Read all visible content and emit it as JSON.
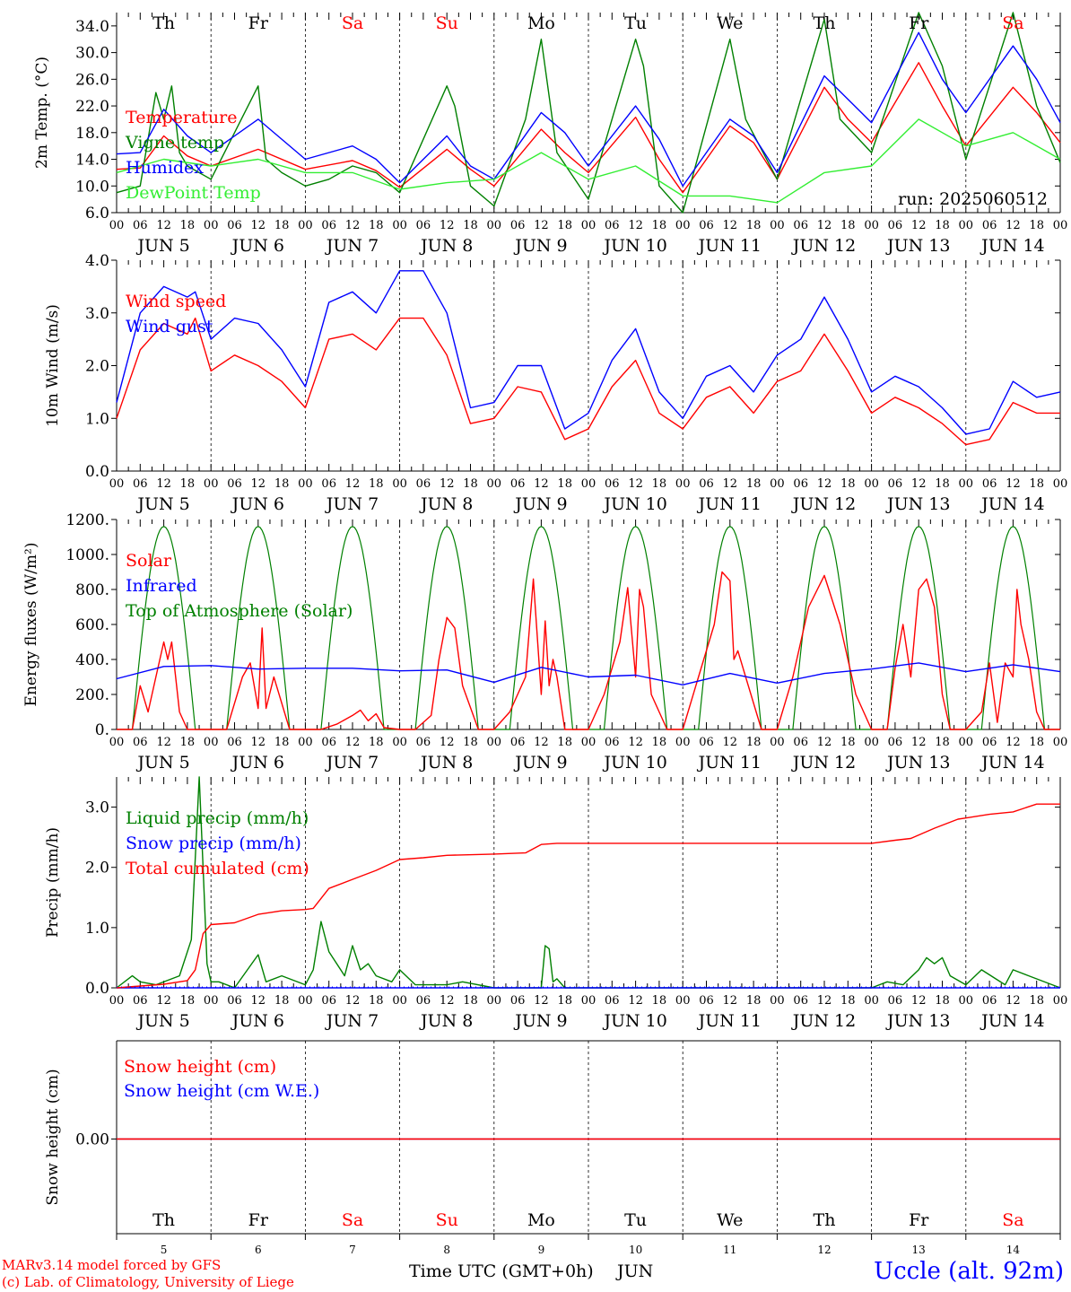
{
  "colors": {
    "red": "#ff0000",
    "green": "#008000",
    "blue": "#0000ff",
    "lightgreen": "#33ee33",
    "black": "#000000"
  },
  "days": {
    "abbr": [
      "Th",
      "Fr",
      "Sa",
      "Su",
      "Mo",
      "Tu",
      "We",
      "Th",
      "Fr",
      "Sa"
    ],
    "weekend": [
      false,
      false,
      true,
      true,
      false,
      false,
      false,
      false,
      false,
      true
    ],
    "dates": [
      "JUN  5",
      "JUN  6",
      "JUN  7",
      "JUN  8",
      "JUN  9",
      "JUN 10",
      "JUN 11",
      "JUN 12",
      "JUN 13",
      "JUN 14"
    ],
    "numbers": [
      "5",
      "6",
      "7",
      "8",
      "9",
      "10",
      "11",
      "12",
      "13",
      "14"
    ],
    "hour_labels": [
      "00",
      "06",
      "12",
      "18"
    ],
    "final_hour": "00"
  },
  "run_label": "run: 2025060512",
  "x_axis_title": "Time UTC (GMT+0h)",
  "x_axis_month": "JUN",
  "footer": {
    "model": "MARv3.14 model forced by GFS",
    "credit": "(c) Lab. of Climatology, University of Liege",
    "station": "Uccle (alt. 92m)"
  },
  "chart_data": [
    {
      "type": "line",
      "ylabel": "2m Temp. (°C)",
      "ylim": [
        6,
        36
      ],
      "yticks": [
        "6.0",
        "10.0",
        "14.0",
        "18.0",
        "22.0",
        "26.0",
        "30.0",
        "34.0"
      ],
      "ytick_values": [
        6,
        10,
        14,
        18,
        22,
        26,
        30,
        34
      ],
      "x_unit": "hours since JUN 5 00 UTC",
      "legend": [
        "Temperature",
        "Vigne temp",
        "Humidex",
        "DewPoint Temp"
      ],
      "series": [
        {
          "name": "Temperature",
          "color": "red",
          "x": [
            0,
            6,
            12,
            18,
            24,
            36,
            48,
            60,
            66,
            72,
            84,
            90,
            96,
            108,
            114,
            120,
            132,
            138,
            144,
            156,
            162,
            168,
            180,
            186,
            192,
            204,
            210,
            216,
            228,
            234,
            240
          ],
          "y": [
            12.5,
            12.7,
            17.5,
            14.5,
            13,
            15.5,
            12.5,
            13.8,
            12.3,
            9.8,
            15.5,
            12.5,
            10,
            18.5,
            15,
            12,
            20.3,
            14,
            9,
            19,
            16.5,
            11,
            24.8,
            20,
            16.5,
            28.5,
            22,
            16,
            24.8,
            21,
            16.5
          ]
        },
        {
          "name": "Vigne temp",
          "color": "green",
          "x": [
            0,
            6,
            10,
            12,
            14,
            16,
            18,
            24,
            30,
            36,
            38,
            42,
            48,
            54,
            60,
            66,
            72,
            84,
            86,
            90,
            96,
            104,
            108,
            112,
            120,
            132,
            134,
            138,
            144,
            156,
            160,
            168,
            180,
            184,
            192,
            204,
            210,
            216,
            228,
            234,
            240
          ],
          "y": [
            9,
            10,
            24,
            20,
            25,
            15,
            13,
            11,
            18,
            25,
            14,
            12,
            10,
            11,
            13,
            12,
            9,
            25,
            22,
            10,
            7,
            20,
            32,
            15,
            8,
            32,
            28,
            10,
            4,
            32,
            20,
            11,
            35,
            20,
            15,
            37,
            28,
            14,
            36,
            22,
            13.5
          ]
        },
        {
          "name": "Humidex",
          "color": "blue",
          "x": [
            0,
            6,
            12,
            18,
            24,
            36,
            48,
            60,
            66,
            72,
            84,
            90,
            96,
            108,
            114,
            120,
            132,
            138,
            144,
            156,
            162,
            168,
            180,
            186,
            192,
            204,
            210,
            216,
            228,
            234,
            240
          ],
          "y": [
            14.8,
            15,
            21.5,
            17.5,
            15,
            20,
            14,
            16,
            14,
            10.5,
            17.5,
            13,
            11,
            21,
            18,
            13,
            22,
            17,
            10,
            20,
            17.5,
            12,
            26.5,
            23,
            19.5,
            33,
            26,
            21,
            31,
            26,
            19.5
          ]
        },
        {
          "name": "DewPoint Temp",
          "color": "lightgreen",
          "x": [
            0,
            12,
            24,
            36,
            48,
            60,
            72,
            84,
            96,
            108,
            120,
            132,
            144,
            156,
            168,
            180,
            192,
            204,
            216,
            228,
            240
          ],
          "y": [
            12,
            14,
            13,
            14,
            12,
            12,
            9.5,
            10.5,
            11,
            15,
            11,
            13,
            8.5,
            8.5,
            7.5,
            12,
            13,
            20,
            16,
            18,
            14
          ]
        }
      ]
    },
    {
      "type": "line",
      "ylabel": "10m Wind (m/s)",
      "ylim": [
        0,
        4
      ],
      "yticks": [
        "0.0",
        "1.0",
        "2.0",
        "3.0",
        "4.0"
      ],
      "ytick_values": [
        0,
        1,
        2,
        3,
        4
      ],
      "x_unit": "hours since JUN 5 00 UTC",
      "legend": [
        "Wind speed",
        "Wind gust"
      ],
      "series": [
        {
          "name": "Wind speed",
          "color": "red",
          "x": [
            0,
            6,
            12,
            18,
            20,
            24,
            30,
            36,
            42,
            48,
            54,
            60,
            66,
            72,
            78,
            84,
            90,
            96,
            102,
            108,
            114,
            120,
            126,
            132,
            138,
            144,
            150,
            156,
            162,
            168,
            174,
            180,
            186,
            192,
            198,
            204,
            210,
            216,
            222,
            228,
            234,
            240
          ],
          "y": [
            1.0,
            2.3,
            2.8,
            2.6,
            2.9,
            1.9,
            2.2,
            2.0,
            1.7,
            1.2,
            2.5,
            2.6,
            2.3,
            2.9,
            2.9,
            2.2,
            0.9,
            1.0,
            1.6,
            1.5,
            0.6,
            0.8,
            1.6,
            2.1,
            1.1,
            0.8,
            1.4,
            1.6,
            1.1,
            1.7,
            1.9,
            2.6,
            1.9,
            1.1,
            1.4,
            1.2,
            0.9,
            0.5,
            0.6,
            1.3,
            1.1,
            1.1
          ]
        },
        {
          "name": "Wind gust",
          "color": "blue",
          "x": [
            0,
            6,
            12,
            18,
            20,
            24,
            30,
            36,
            42,
            48,
            54,
            60,
            66,
            72,
            78,
            84,
            90,
            96,
            102,
            108,
            114,
            120,
            126,
            132,
            138,
            144,
            150,
            156,
            162,
            168,
            174,
            180,
            186,
            192,
            198,
            204,
            210,
            216,
            222,
            228,
            234,
            240
          ],
          "y": [
            1.3,
            3.0,
            3.5,
            3.3,
            3.4,
            2.5,
            2.9,
            2.8,
            2.3,
            1.6,
            3.2,
            3.4,
            3.0,
            3.8,
            3.8,
            3.0,
            1.2,
            1.3,
            2.0,
            2.0,
            0.8,
            1.1,
            2.1,
            2.7,
            1.5,
            1.0,
            1.8,
            2.0,
            1.5,
            2.2,
            2.5,
            3.3,
            2.5,
            1.5,
            1.8,
            1.6,
            1.2,
            0.7,
            0.8,
            1.7,
            1.4,
            1.5
          ]
        }
      ]
    },
    {
      "type": "line",
      "ylabel": "Energy fluxes (W/m²)",
      "ylim": [
        0,
        1200
      ],
      "yticks": [
        "0.",
        "200.",
        "400.",
        "600.",
        "800.",
        "1000.",
        "1200."
      ],
      "ytick_values": [
        0,
        200,
        400,
        600,
        800,
        1000,
        1200
      ],
      "x_unit": "hours since JUN 5 00 UTC",
      "legend": [
        "Solar",
        "Infrared",
        "Top of Atmosphere (Solar)"
      ],
      "toa": {
        "name": "Top of Atmosphere (Solar)",
        "color": "green",
        "peak": 1160,
        "rise_hour": 4,
        "set_hour": 20
      },
      "series": [
        {
          "name": "Solar",
          "color": "red",
          "x": [
            0,
            4,
            6,
            8,
            10,
            12,
            13,
            14,
            15,
            16,
            18,
            20,
            24,
            28,
            32,
            34,
            36,
            37,
            38,
            40,
            44,
            48,
            52,
            56,
            60,
            62,
            64,
            66,
            68,
            72,
            76,
            80,
            82,
            84,
            86,
            88,
            92,
            96,
            100,
            104,
            106,
            108,
            109,
            110,
            111,
            112,
            114,
            116,
            120,
            124,
            128,
            130,
            132,
            133,
            134,
            136,
            140,
            144,
            148,
            152,
            154,
            156,
            157,
            158,
            160,
            164,
            168,
            172,
            176,
            180,
            184,
            188,
            192,
            196,
            198,
            200,
            202,
            204,
            206,
            208,
            210,
            212,
            216,
            220,
            222,
            224,
            226,
            228,
            229,
            230,
            232,
            234,
            236,
            240
          ],
          "y": [
            0,
            0,
            250,
            100,
            300,
            500,
            400,
            500,
            300,
            100,
            0,
            0,
            0,
            0,
            300,
            380,
            120,
            580,
            120,
            300,
            0,
            0,
            0,
            30,
            80,
            110,
            50,
            90,
            10,
            0,
            0,
            80,
            400,
            640,
            580,
            250,
            0,
            0,
            100,
            300,
            860,
            200,
            620,
            250,
            400,
            300,
            0,
            0,
            0,
            200,
            500,
            810,
            300,
            800,
            700,
            200,
            0,
            0,
            300,
            600,
            900,
            850,
            400,
            450,
            300,
            0,
            0,
            300,
            700,
            880,
            600,
            200,
            0,
            0,
            350,
            600,
            300,
            800,
            860,
            700,
            200,
            0,
            0,
            100,
            380,
            40,
            380,
            300,
            800,
            600,
            400,
            100,
            0,
            0
          ]
        },
        {
          "name": "Infrared",
          "color": "blue",
          "x": [
            0,
            12,
            24,
            36,
            48,
            60,
            72,
            84,
            96,
            108,
            120,
            132,
            144,
            156,
            168,
            180,
            192,
            204,
            216,
            228,
            240
          ],
          "y": [
            290,
            360,
            365,
            345,
            350,
            350,
            335,
            340,
            270,
            355,
            300,
            310,
            255,
            320,
            265,
            320,
            345,
            380,
            330,
            370,
            330
          ]
        }
      ]
    },
    {
      "type": "line",
      "ylabel": "Precip (mm/h)",
      "ylim": [
        0,
        3.5
      ],
      "yticks": [
        "0.0",
        "1.0",
        "2.0",
        "3.0"
      ],
      "ytick_values": [
        0,
        1,
        2,
        3
      ],
      "x_unit": "hours since JUN 5 00 UTC",
      "legend": [
        "Liquid precip (mm/h)",
        "Snow precip (mm/h)",
        "Total cumulated (cm)"
      ],
      "series": [
        {
          "name": "Liquid precip (mm/h)",
          "color": "green",
          "x": [
            0,
            4,
            6,
            10,
            16,
            19,
            21,
            22,
            23,
            24,
            26,
            30,
            36,
            38,
            42,
            48,
            50,
            52,
            54,
            58,
            60,
            62,
            64,
            66,
            70,
            72,
            76,
            80,
            84,
            88,
            96,
            108,
            109,
            110,
            111,
            112,
            114,
            120,
            192,
            196,
            200,
            204,
            206,
            208,
            210,
            212,
            216,
            220,
            226,
            228,
            232,
            240
          ],
          "y": [
            0,
            0.2,
            0.1,
            0.05,
            0.2,
            0.8,
            3.5,
            2.0,
            0.4,
            0.1,
            0.1,
            0,
            0.55,
            0.1,
            0.2,
            0.05,
            0.3,
            1.1,
            0.6,
            0.2,
            0.7,
            0.3,
            0.4,
            0.2,
            0.1,
            0.3,
            0.05,
            0.05,
            0.05,
            0.1,
            0,
            0,
            0.7,
            0.65,
            0.1,
            0.15,
            0,
            0,
            0,
            0.1,
            0.05,
            0.3,
            0.5,
            0.4,
            0.5,
            0.2,
            0.05,
            0.3,
            0.05,
            0.3,
            0.2,
            0
          ]
        },
        {
          "name": "Snow precip (mm/h)",
          "color": "blue",
          "x": [
            0,
            240
          ],
          "y": [
            0,
            0
          ]
        },
        {
          "name": "Total cumulated (cm)",
          "color": "red",
          "x": [
            0,
            12,
            18,
            20,
            22,
            24,
            30,
            36,
            42,
            48,
            50,
            54,
            60,
            66,
            72,
            78,
            84,
            96,
            104,
            108,
            112,
            120,
            144,
            168,
            192,
            198,
            202,
            208,
            214,
            216,
            222,
            228,
            234,
            240
          ],
          "y": [
            0,
            0.06,
            0.12,
            0.3,
            0.9,
            1.05,
            1.08,
            1.22,
            1.28,
            1.3,
            1.32,
            1.65,
            1.8,
            1.95,
            2.13,
            2.16,
            2.2,
            2.22,
            2.24,
            2.38,
            2.4,
            2.4,
            2.4,
            2.4,
            2.4,
            2.45,
            2.48,
            2.65,
            2.8,
            2.82,
            2.88,
            2.92,
            3.05,
            3.05
          ]
        }
      ]
    },
    {
      "type": "line",
      "ylabel": "Snow height (cm)",
      "yticks": [
        "0.00"
      ],
      "ytick_values": [
        0
      ],
      "x_unit": "hours since JUN 5 00 UTC",
      "legend": [
        "Snow height (cm)",
        "Snow height (cm W.E.)"
      ],
      "series": [
        {
          "name": "Snow height (cm)",
          "color": "red",
          "x": [
            0,
            240
          ],
          "y": [
            0,
            0
          ]
        },
        {
          "name": "Snow height (cm W.E.)",
          "color": "blue",
          "x": [
            0,
            240
          ],
          "y": [
            0,
            0
          ]
        }
      ]
    }
  ]
}
